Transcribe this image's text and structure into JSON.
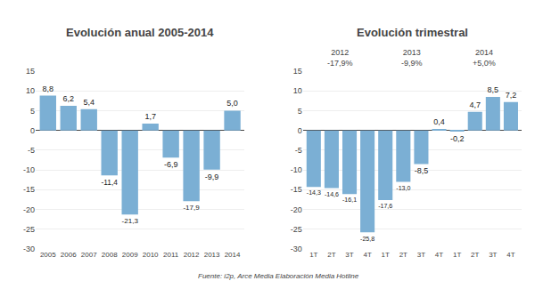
{
  "chart_data": [
    {
      "type": "bar",
      "title": "Evolución anual 2005-2014",
      "categories": [
        "2005",
        "2006",
        "2007",
        "2008",
        "2009",
        "2010",
        "2011",
        "2012",
        "2013",
        "2014"
      ],
      "values": [
        8.8,
        6.2,
        5.4,
        -11.4,
        -21.3,
        1.7,
        -6.9,
        -17.9,
        -9.9,
        5.0
      ],
      "value_labels": [
        "8,8",
        "6,2",
        "5,4",
        "-11,4",
        "-21,3",
        "1,7",
        "-6,9",
        "-17,9",
        "-9,9",
        "5,0"
      ],
      "data_labels": true,
      "color": "#7bafd4",
      "ylim": [
        -30,
        15
      ],
      "yticks": [
        -30,
        -25,
        -20,
        -15,
        -10,
        -5,
        0,
        5,
        10,
        15
      ],
      "grid": true
    },
    {
      "type": "bar",
      "title": "Evolución trimestral",
      "categories": [
        "1T",
        "2T",
        "3T",
        "4T",
        "1T",
        "2T",
        "3T",
        "4T",
        "1T",
        "2T",
        "3T",
        "4T"
      ],
      "values": [
        -14.3,
        -14.6,
        -16.1,
        -25.8,
        -17.6,
        -13.0,
        -8.5,
        0.4,
        -0.2,
        4.7,
        8.5,
        7.2
      ],
      "value_labels": [
        "-14,3",
        "-14,6",
        "-16,1",
        "-25,8",
        "-17,6",
        "-13,0",
        "-8,5",
        "0,4",
        "-0,2",
        "4,7",
        "8,5",
        "7,2"
      ],
      "data_labels": true,
      "color": "#7bafd4",
      "ylim": [
        -30,
        15
      ],
      "yticks": [
        -30,
        -25,
        -20,
        -15,
        -10,
        -5,
        0,
        5,
        10,
        15
      ],
      "grid": true,
      "annotations": [
        "2012\n-17,9%",
        "2013\n-9,9%",
        "2014\n+5,0%"
      ]
    }
  ],
  "source": "Fuente: i2p, Arce Media Elaboración Media Hotline"
}
